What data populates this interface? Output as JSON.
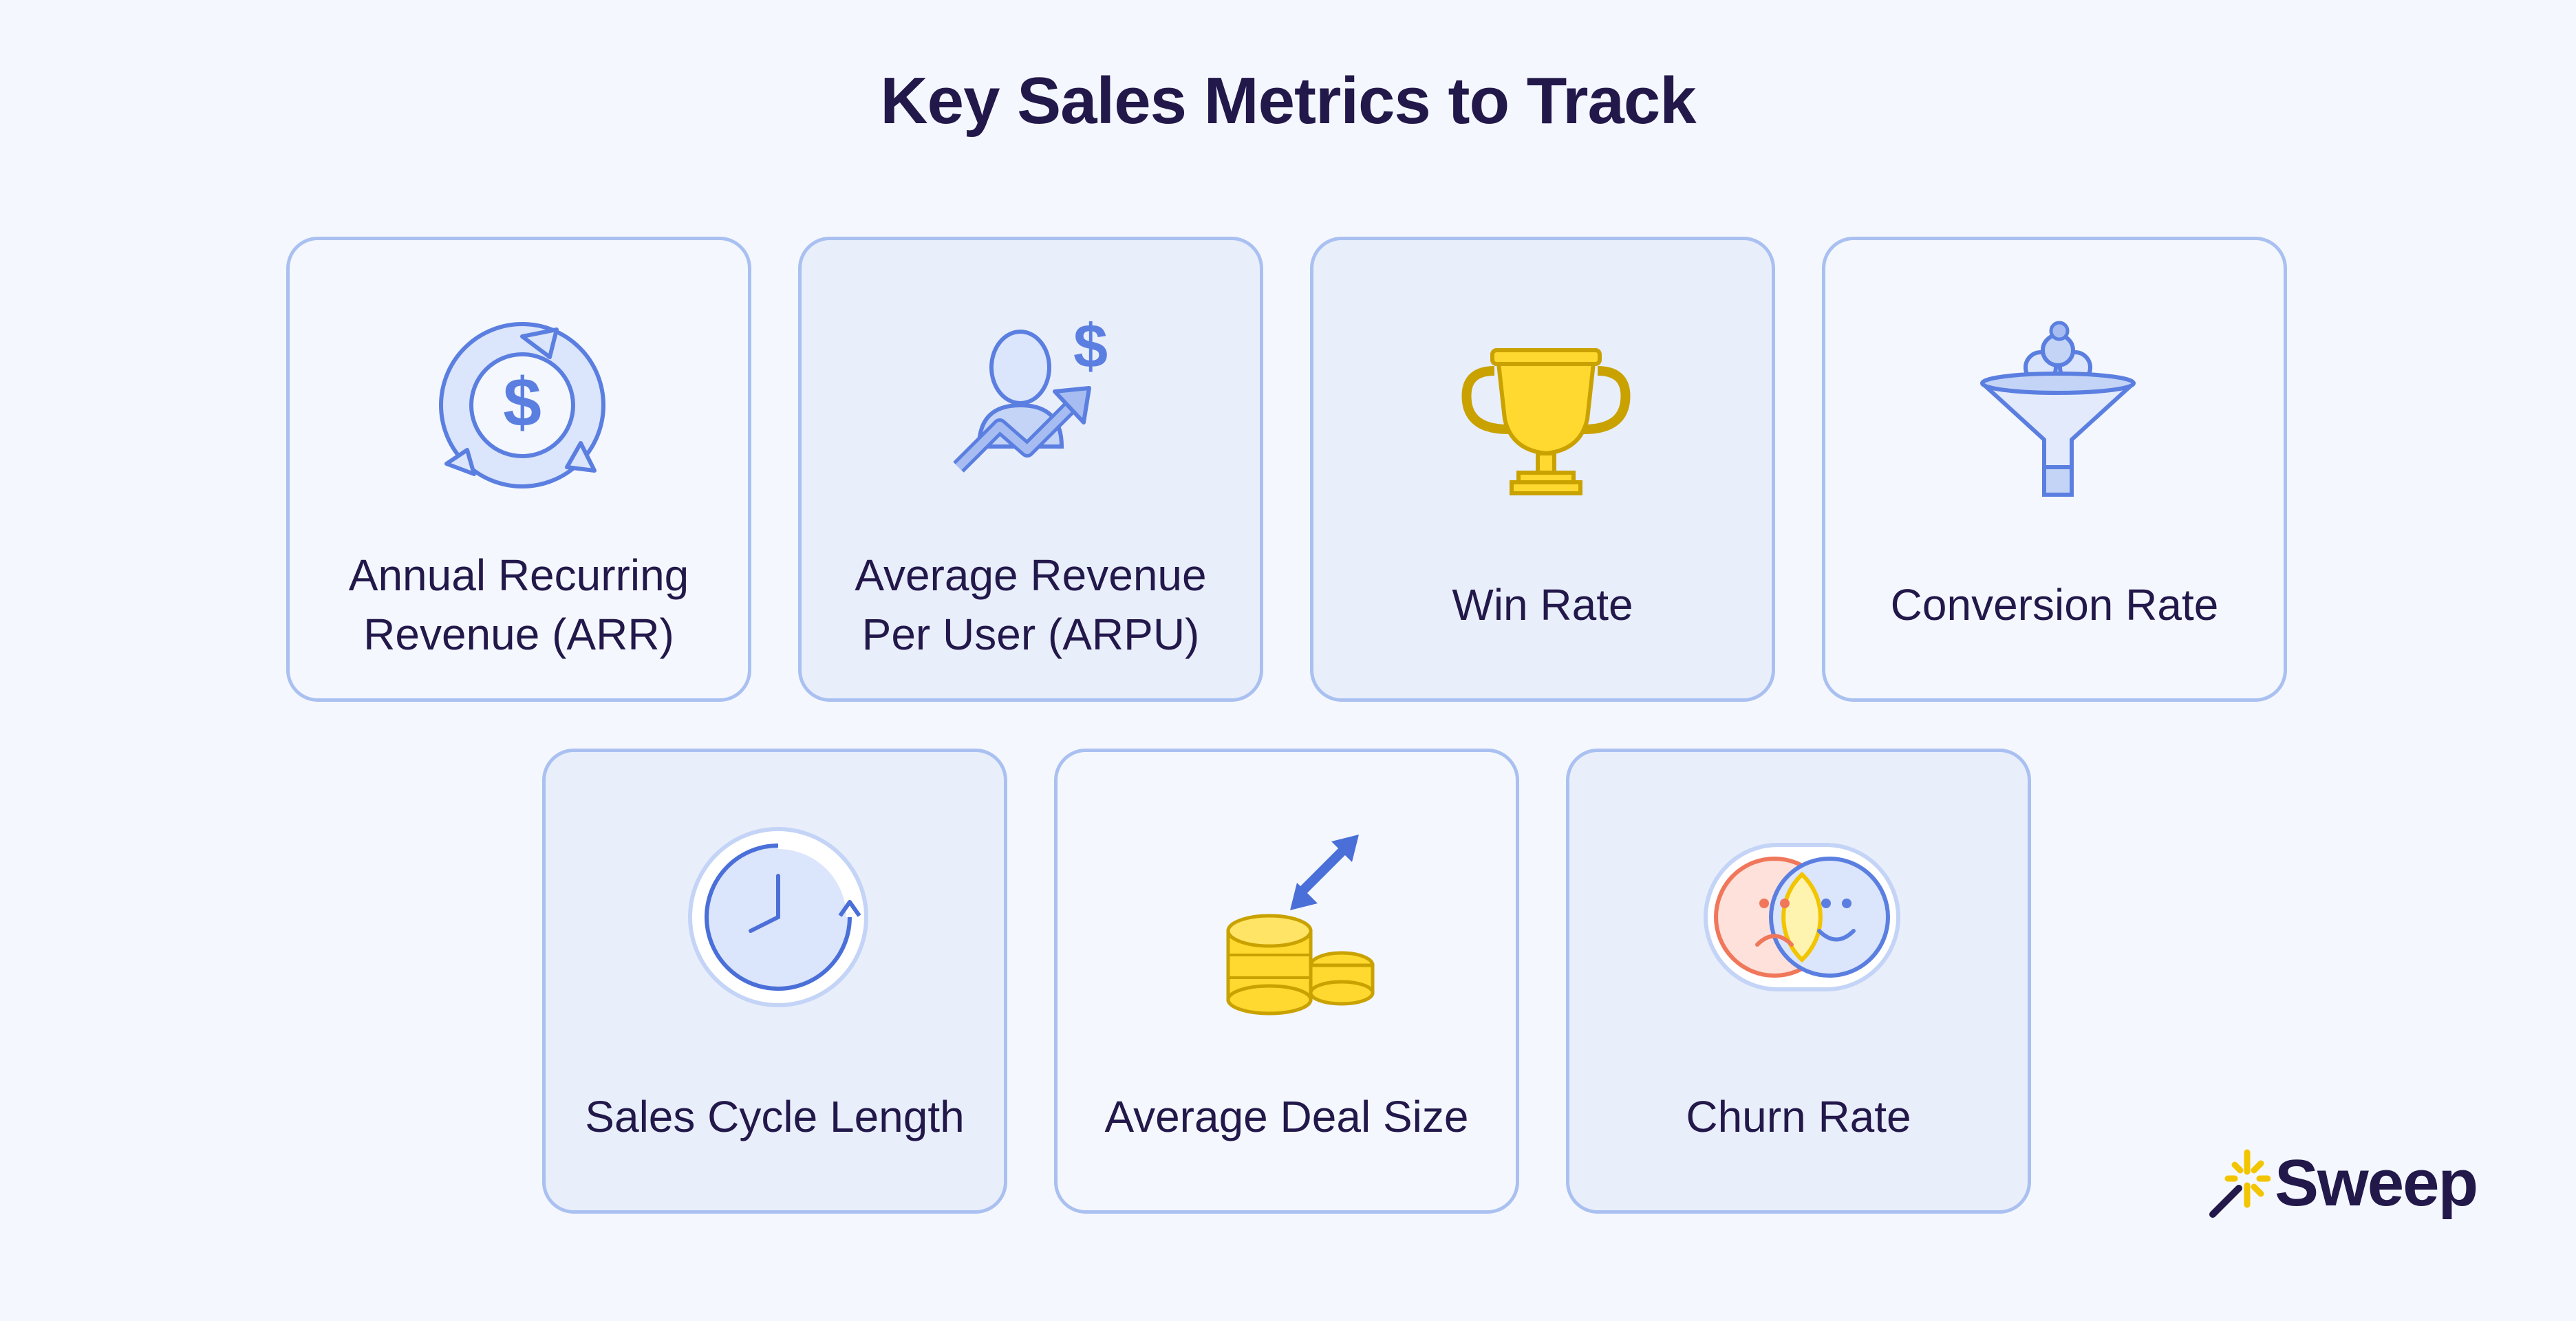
{
  "title": "Key Sales Metrics to Track",
  "metrics": [
    {
      "label": "Annual Recurring\nRevenue (ARR)",
      "icon": "recurring-revenue-icon"
    },
    {
      "label": "Average Revenue\nPer User (ARPU)",
      "icon": "user-revenue-growth-icon"
    },
    {
      "label": "Win Rate",
      "icon": "trophy-icon"
    },
    {
      "label": "Conversion Rate",
      "icon": "funnel-icon"
    },
    {
      "label": "Sales Cycle Length",
      "icon": "clock-icon"
    },
    {
      "label": "Average Deal Size",
      "icon": "coins-icon"
    },
    {
      "label": "Churn Rate",
      "icon": "sad-happy-faces-icon"
    }
  ],
  "brand": {
    "name": "Sweep",
    "icon": "sweep-logo-icon"
  },
  "colors": {
    "accent": "#5b7fe0",
    "card_border": "#a9c0f1",
    "gold": "#ffd92f",
    "text": "#22184a"
  }
}
